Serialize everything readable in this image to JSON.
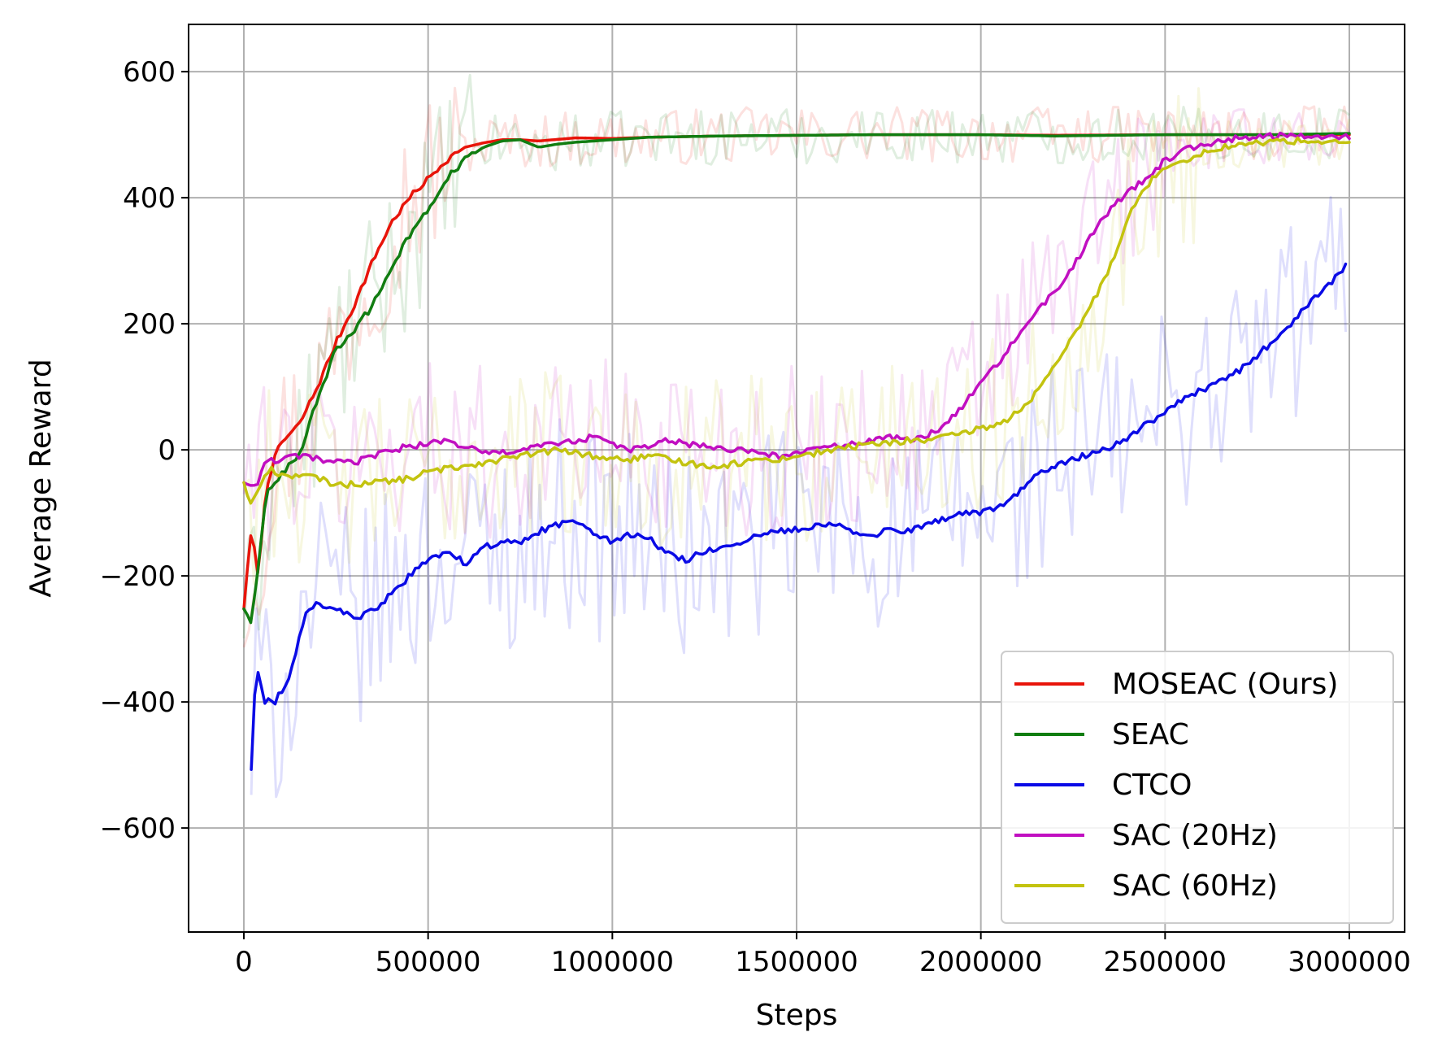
{
  "chart_data": {
    "type": "line",
    "title": "",
    "xlabel": "Steps",
    "ylabel": "Average Reward",
    "xlim": [
      -150000,
      3150000
    ],
    "ylim": [
      -765,
      675
    ],
    "x_ticks": [
      0,
      500000,
      1000000,
      1500000,
      2000000,
      2500000,
      3000000
    ],
    "x_tick_labels": [
      "0",
      "500000",
      "1000000",
      "1500000",
      "2000000",
      "2500000",
      "3000000"
    ],
    "y_ticks": [
      -600,
      -400,
      -200,
      0,
      200,
      400,
      600
    ],
    "y_tick_labels": [
      "−600",
      "−400",
      "−200",
      "0",
      "200",
      "400",
      "600"
    ],
    "grid": true,
    "legend_position": "bottom-right",
    "series": [
      {
        "name": "MOSEAC (Ours)",
        "color": "#e8140a",
        "x": [
          0,
          20000,
          40000,
          60000,
          80000,
          100000,
          150000,
          200000,
          250000,
          300000,
          350000,
          400000,
          450000,
          500000,
          550000,
          600000,
          650000,
          700000,
          750000,
          800000,
          900000,
          1000000,
          1100000,
          1200000,
          1300000,
          1500000,
          1700000,
          2000000,
          2200000,
          2500000,
          2800000,
          3000000
        ],
        "y": [
          -250,
          -130,
          -200,
          -60,
          -20,
          10,
          40,
          100,
          170,
          230,
          300,
          360,
          400,
          430,
          460,
          480,
          487,
          492,
          492,
          490,
          495,
          494,
          496,
          497,
          498,
          499,
          500,
          500,
          499,
          500,
          500,
          500
        ]
      },
      {
        "name": "SEAC",
        "color": "#117d11",
        "x": [
          0,
          20000,
          40000,
          60000,
          80000,
          100000,
          150000,
          200000,
          250000,
          300000,
          350000,
          400000,
          450000,
          500000,
          550000,
          600000,
          650000,
          700000,
          750000,
          800000,
          850000,
          900000,
          1000000,
          1100000,
          1200000,
          1300000,
          1500000,
          1700000,
          2000000,
          2200000,
          2500000,
          2800000,
          3000000
        ],
        "y": [
          -250,
          -280,
          -180,
          -70,
          -50,
          -40,
          -10,
          80,
          160,
          190,
          230,
          290,
          340,
          380,
          430,
          460,
          480,
          490,
          492,
          480,
          485,
          488,
          492,
          496,
          497,
          498,
          499,
          500,
          500,
          498,
          500,
          500,
          502
        ]
      },
      {
        "name": "CTCO",
        "color": "#0a0ae6",
        "x": [
          20000,
          30000,
          40000,
          50000,
          60000,
          70000,
          80000,
          100000,
          130000,
          150000,
          170000,
          200000,
          250000,
          300000,
          350000,
          400000,
          450000,
          500000,
          550000,
          600000,
          650000,
          700000,
          750000,
          800000,
          850000,
          900000,
          950000,
          1000000,
          1050000,
          1100000,
          1150000,
          1200000,
          1250000,
          1300000,
          1350000,
          1400000,
          1450000,
          1500000,
          1550000,
          1600000,
          1650000,
          1700000,
          1750000,
          1800000,
          1850000,
          1900000,
          1950000,
          2000000,
          2050000,
          2100000,
          2150000,
          2200000,
          2250000,
          2300000,
          2350000,
          2400000,
          2450000,
          2500000,
          2550000,
          2600000,
          2650000,
          2700000,
          2750000,
          2800000,
          2850000,
          2900000,
          2950000,
          2990000
        ],
        "y": [
          -505,
          -380,
          -345,
          -390,
          -410,
          -380,
          -405,
          -385,
          -350,
          -300,
          -250,
          -245,
          -250,
          -270,
          -255,
          -230,
          -200,
          -175,
          -160,
          -180,
          -155,
          -145,
          -150,
          -130,
          -120,
          -110,
          -130,
          -145,
          -135,
          -140,
          -165,
          -175,
          -160,
          -155,
          -150,
          -135,
          -130,
          -125,
          -120,
          -115,
          -130,
          -140,
          -125,
          -130,
          -120,
          -110,
          -100,
          -100,
          -90,
          -70,
          -40,
          -25,
          -15,
          -5,
          5,
          20,
          40,
          60,
          80,
          95,
          110,
          125,
          150,
          175,
          205,
          240,
          265,
          290
        ]
      },
      {
        "name": "SAC (20Hz)",
        "color": "#c10fc1",
        "x": [
          0,
          30000,
          60000,
          100000,
          150000,
          200000,
          250000,
          300000,
          350000,
          400000,
          450000,
          500000,
          550000,
          600000,
          650000,
          700000,
          750000,
          800000,
          850000,
          900000,
          950000,
          1000000,
          1050000,
          1100000,
          1150000,
          1200000,
          1250000,
          1300000,
          1350000,
          1400000,
          1450000,
          1500000,
          1550000,
          1600000,
          1650000,
          1700000,
          1750000,
          1800000,
          1850000,
          1900000,
          1950000,
          2000000,
          2050000,
          2100000,
          2150000,
          2200000,
          2250000,
          2300000,
          2350000,
          2400000,
          2450000,
          2500000,
          2550000,
          2600000,
          2650000,
          2700000,
          2750000,
          2800000,
          2900000,
          3000000
        ],
        "y": [
          -50,
          -60,
          -20,
          -15,
          -10,
          -15,
          -20,
          -20,
          -10,
          0,
          5,
          10,
          15,
          5,
          -5,
          -5,
          0,
          5,
          10,
          15,
          20,
          10,
          0,
          5,
          15,
          10,
          5,
          0,
          0,
          -5,
          -10,
          -5,
          0,
          5,
          10,
          15,
          20,
          15,
          20,
          40,
          70,
          110,
          140,
          180,
          220,
          250,
          290,
          340,
          380,
          410,
          430,
          460,
          475,
          485,
          490,
          495,
          497,
          498,
          498,
          495
        ]
      },
      {
        "name": "SAC (60Hz)",
        "color": "#c3c30f",
        "x": [
          0,
          20000,
          40000,
          70000,
          100000,
          150000,
          200000,
          250000,
          300000,
          350000,
          400000,
          450000,
          500000,
          550000,
          600000,
          650000,
          700000,
          750000,
          800000,
          850000,
          900000,
          950000,
          1000000,
          1050000,
          1100000,
          1150000,
          1200000,
          1250000,
          1300000,
          1350000,
          1400000,
          1450000,
          1500000,
          1550000,
          1600000,
          1650000,
          1700000,
          1750000,
          1800000,
          1850000,
          1900000,
          1950000,
          2000000,
          2050000,
          2100000,
          2150000,
          2200000,
          2250000,
          2300000,
          2350000,
          2400000,
          2450000,
          2500000,
          2550000,
          2600000,
          2650000,
          2700000,
          2750000,
          2800000,
          2900000,
          3000000
        ],
        "y": [
          -50,
          -90,
          -60,
          -30,
          -40,
          -40,
          -45,
          -55,
          -55,
          -50,
          -50,
          -45,
          -35,
          -30,
          -25,
          -20,
          -15,
          -10,
          -5,
          0,
          -5,
          -10,
          -15,
          -15,
          -10,
          -15,
          -20,
          -25,
          -25,
          -20,
          -15,
          -15,
          -10,
          -5,
          0,
          5,
          10,
          10,
          15,
          15,
          20,
          25,
          35,
          40,
          60,
          90,
          130,
          180,
          230,
          290,
          370,
          420,
          450,
          460,
          470,
          480,
          483,
          487,
          490,
          490,
          485
        ]
      }
    ]
  }
}
